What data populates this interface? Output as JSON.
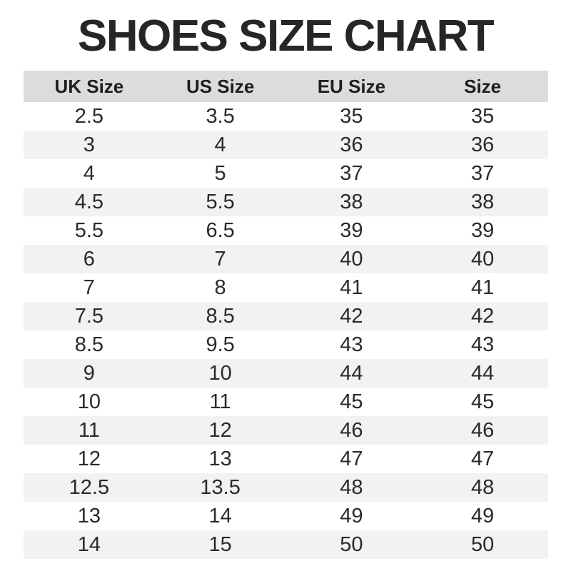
{
  "title": "SHOES SIZE CHART",
  "chart_data": {
    "type": "table",
    "title": "SHOES SIZE CHART",
    "columns": [
      "UK Size",
      "US Size",
      "EU Size",
      "Size"
    ],
    "rows": [
      [
        "2.5",
        "3.5",
        "35",
        "35"
      ],
      [
        "3",
        "4",
        "36",
        "36"
      ],
      [
        "4",
        "5",
        "37",
        "37"
      ],
      [
        "4.5",
        "5.5",
        "38",
        "38"
      ],
      [
        "5.5",
        "6.5",
        "39",
        "39"
      ],
      [
        "6",
        "7",
        "40",
        "40"
      ],
      [
        "7",
        "8",
        "41",
        "41"
      ],
      [
        "7.5",
        "8.5",
        "42",
        "42"
      ],
      [
        "8.5",
        "9.5",
        "43",
        "43"
      ],
      [
        "9",
        "10",
        "44",
        "44"
      ],
      [
        "10",
        "11",
        "45",
        "45"
      ],
      [
        "11",
        "12",
        "46",
        "46"
      ],
      [
        "12",
        "13",
        "47",
        "47"
      ],
      [
        "12.5",
        "13.5",
        "48",
        "48"
      ],
      [
        "13",
        "14",
        "49",
        "49"
      ],
      [
        "14",
        "15",
        "50",
        "50"
      ]
    ],
    "layout": {
      "header_background": "#dcdcdc",
      "alt_row_background": "#f2f2f2",
      "row_background": "#ffffff",
      "title_color": "#262626",
      "text_color": "#2a2a2a",
      "grid": "off",
      "zebra_striping": true
    }
  }
}
